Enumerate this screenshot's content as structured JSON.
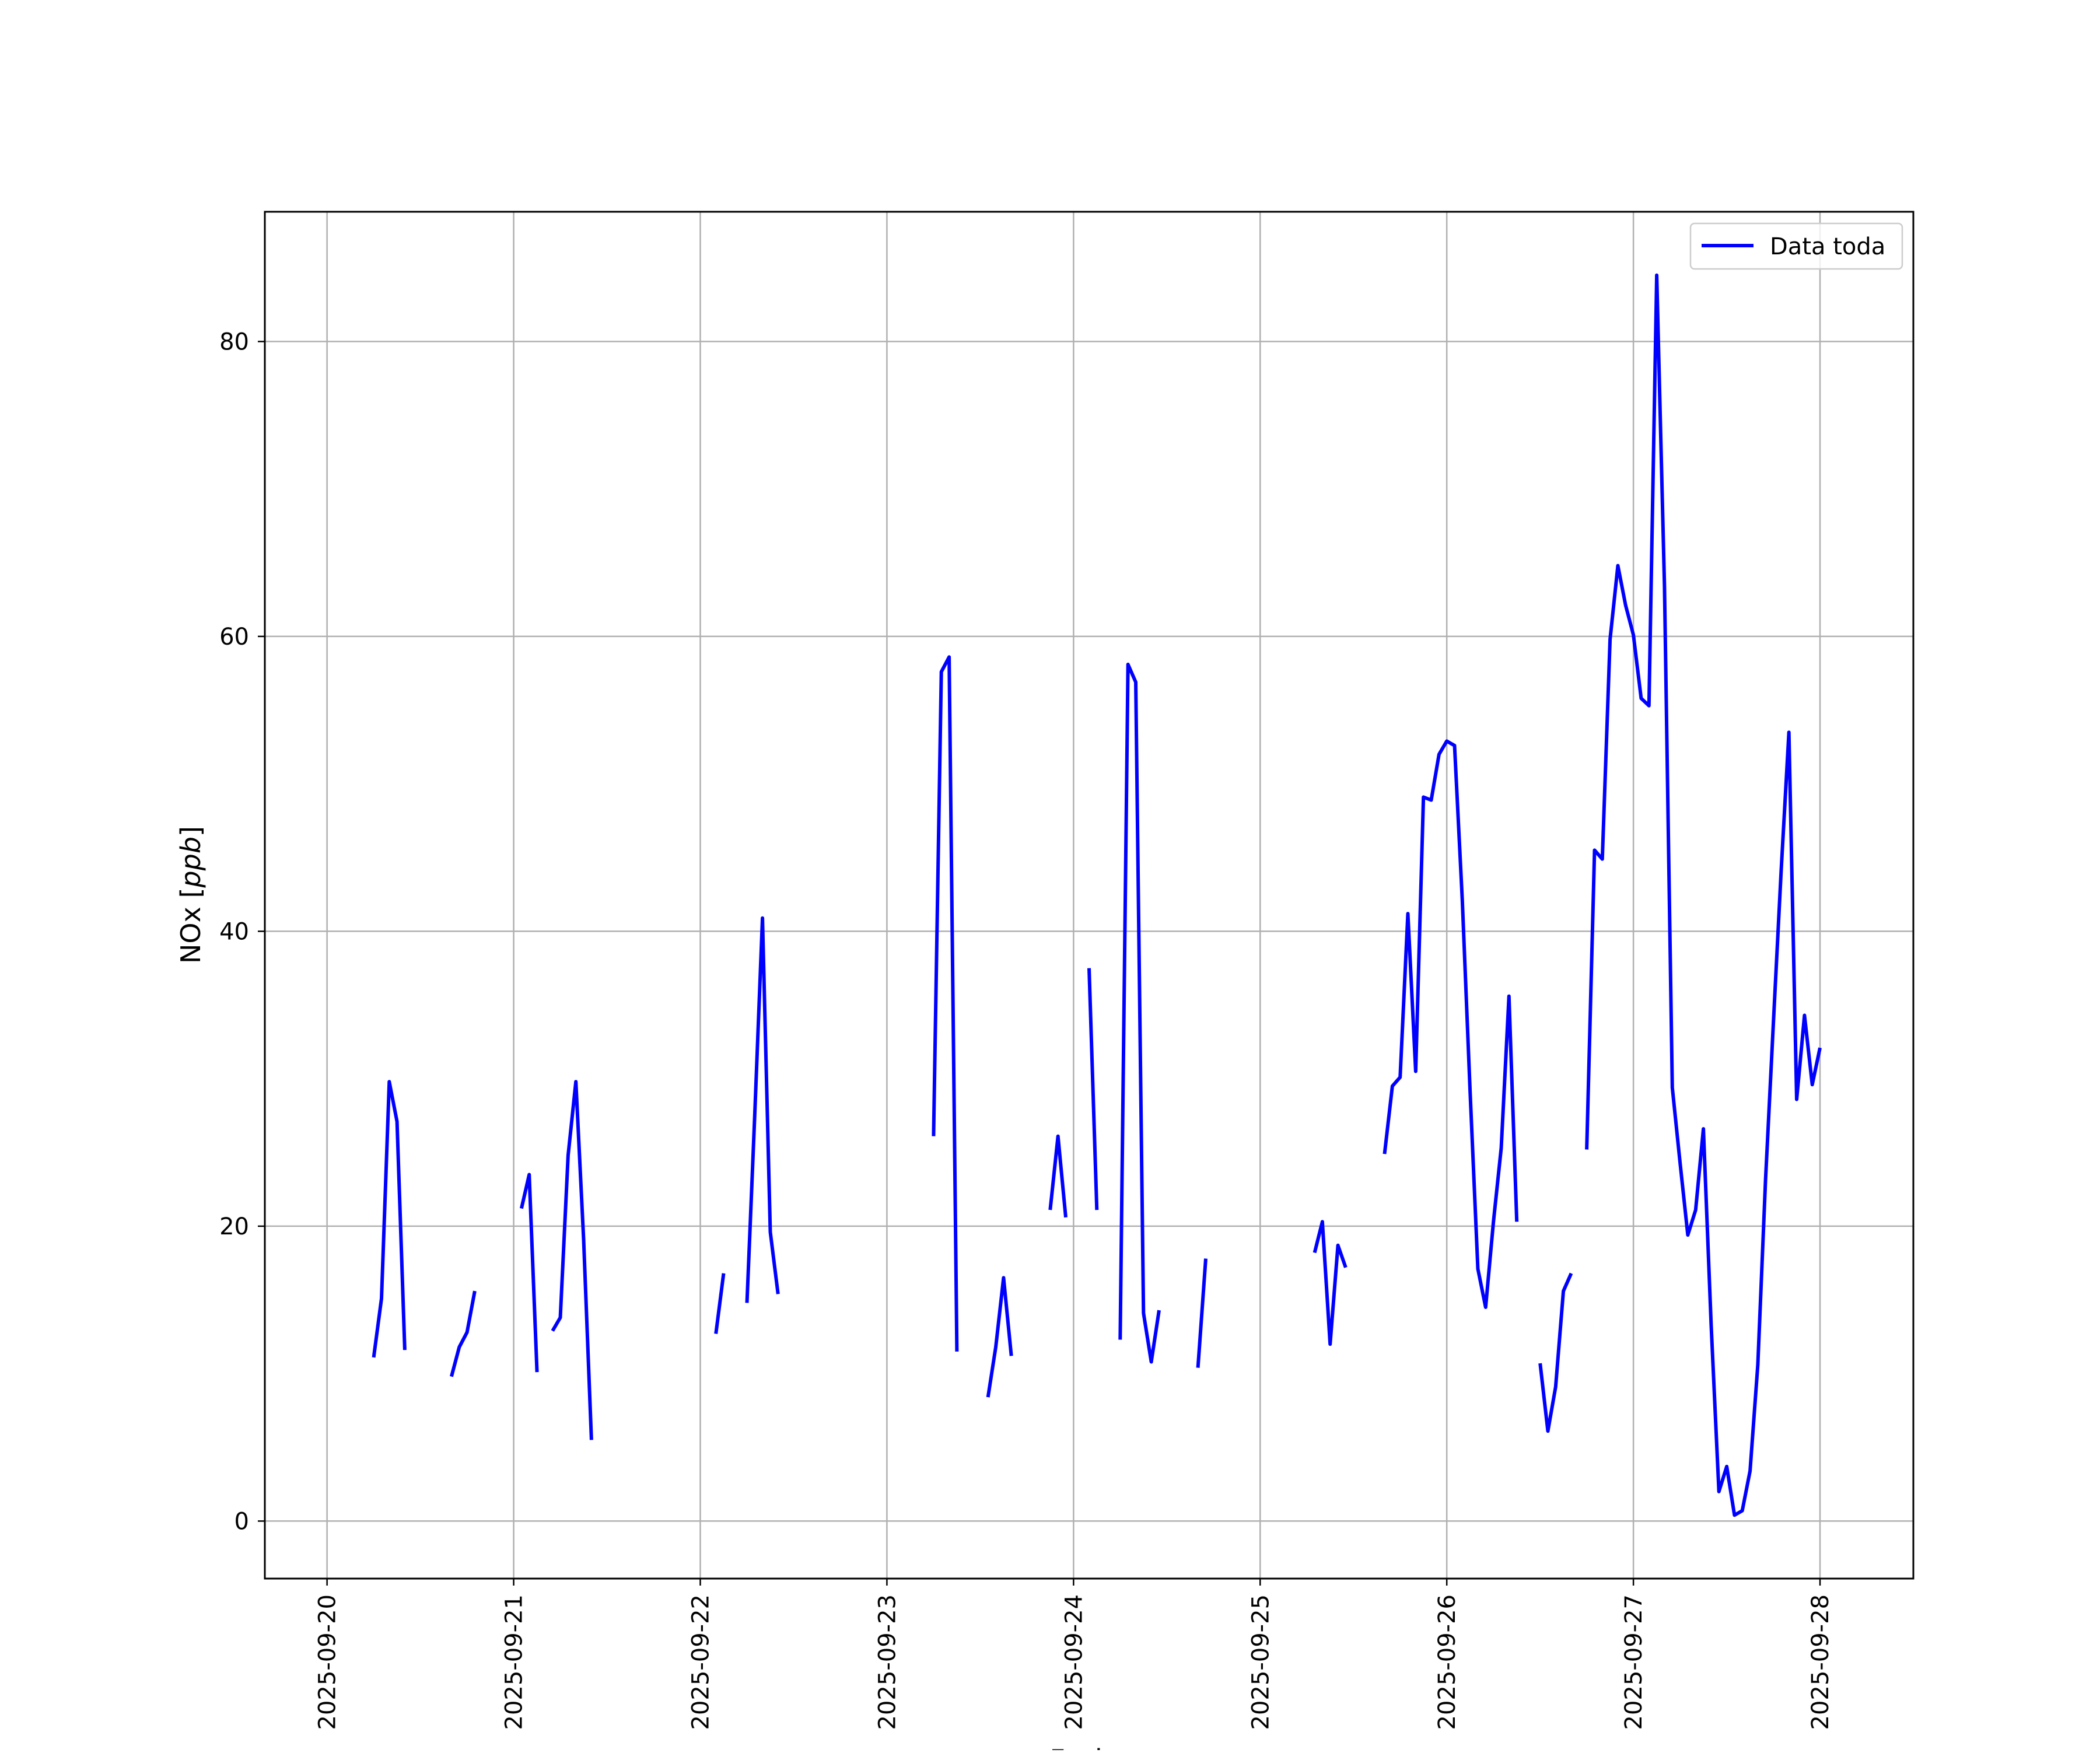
{
  "chart_data": {
    "type": "line",
    "title": "",
    "xlabel": "Fecha",
    "ylabel": "NOx [ppb]",
    "ylabel_main": "NOx [",
    "ylabel_unit": "ppb",
    "ylabel_close": "]",
    "x_type": "date",
    "xlim": [
      "2025-09-19T16:00",
      "2025-09-28T12:00"
    ],
    "ylim": [
      -3.9,
      88.8
    ],
    "x_ticks": [
      "2025-09-20",
      "2025-09-21",
      "2025-09-22",
      "2025-09-23",
      "2025-09-24",
      "2025-09-25",
      "2025-09-26",
      "2025-09-27",
      "2025-09-28"
    ],
    "y_ticks": [
      0,
      20,
      40,
      60,
      80
    ],
    "grid": true,
    "legend_position": "top-right",
    "series": [
      {
        "name": "Data toda",
        "color": "#0000ff",
        "segments": [
          [
            [
              "2025-09-20T06:00",
              11.1
            ],
            [
              "2025-09-20T07:00",
              15.1
            ],
            [
              "2025-09-20T08:00",
              29.8
            ],
            [
              "2025-09-20T09:00",
              27.1
            ],
            [
              "2025-09-20T10:00",
              11.6
            ]
          ],
          [
            [
              "2025-09-20T16:00",
              9.8
            ],
            [
              "2025-09-20T17:00",
              11.8
            ],
            [
              "2025-09-20T18:00",
              12.8
            ],
            [
              "2025-09-20T19:00",
              15.6
            ]
          ],
          [
            [
              "2025-09-21T01:00",
              21.2
            ],
            [
              "2025-09-21T02:00",
              23.5
            ],
            [
              "2025-09-21T03:00",
              10.1
            ]
          ],
          [
            [
              "2025-09-21T05:00",
              12.9
            ],
            [
              "2025-09-21T06:00",
              13.8
            ],
            [
              "2025-09-21T07:00",
              24.8
            ],
            [
              "2025-09-21T08:00",
              29.8
            ],
            [
              "2025-09-21T09:00",
              19.1
            ],
            [
              "2025-09-21T10:00",
              5.5
            ]
          ],
          [
            [
              "2025-09-22T02:00",
              12.7
            ],
            [
              "2025-09-22T03:00",
              16.8
            ]
          ],
          [
            [
              "2025-09-22T06:00",
              14.8
            ],
            [
              "2025-09-22T07:00",
              27.5
            ],
            [
              "2025-09-22T08:00",
              40.9
            ],
            [
              "2025-09-22T09:00",
              19.6
            ],
            [
              "2025-09-22T10:00",
              15.4
            ]
          ],
          [
            [
              "2025-09-23T06:00",
              26.1
            ],
            [
              "2025-09-23T07:00",
              57.6
            ],
            [
              "2025-09-23T08:00",
              58.6
            ],
            [
              "2025-09-23T09:00",
              11.5
            ]
          ],
          [
            [
              "2025-09-23T13:00",
              8.4
            ],
            [
              "2025-09-23T14:00",
              11.8
            ],
            [
              "2025-09-23T15:00",
              16.5
            ],
            [
              "2025-09-23T16:00",
              11.2
            ]
          ],
          [
            [
              "2025-09-23T21:00",
              21.1
            ],
            [
              "2025-09-23T22:00",
              26.1
            ],
            [
              "2025-09-23T23:00",
              20.6
            ]
          ],
          [
            [
              "2025-09-24T02:00",
              37.5
            ],
            [
              "2025-09-24T03:00",
              21.1
            ]
          ],
          [
            [
              "2025-09-24T06:00",
              12.3
            ],
            [
              "2025-09-24T07:00",
              58.1
            ],
            [
              "2025-09-24T08:00",
              56.9
            ],
            [
              "2025-09-24T09:00",
              14.1
            ],
            [
              "2025-09-24T10:00",
              10.8
            ],
            [
              "2025-09-24T11:00",
              14.3
            ]
          ],
          [
            [
              "2025-09-24T16:00",
              10.4
            ],
            [
              "2025-09-24T17:00",
              17.8
            ]
          ],
          [
            [
              "2025-09-25T07:00",
              18.2
            ],
            [
              "2025-09-25T08:00",
              20.3
            ],
            [
              "2025-09-25T09:00",
              12.0
            ],
            [
              "2025-09-25T10:00",
              18.7
            ],
            [
              "2025-09-25T11:00",
              17.2
            ]
          ],
          [
            [
              "2025-09-25T16:00",
              24.9
            ],
            [
              "2025-09-25T17:00",
              29.5
            ],
            [
              "2025-09-25T18:00",
              30.1
            ],
            [
              "2025-09-25T19:00",
              41.2
            ],
            [
              "2025-09-25T20:00",
              30.5
            ],
            [
              "2025-09-25T21:00",
              49.1
            ],
            [
              "2025-09-25T22:00",
              48.9
            ],
            [
              "2025-09-25T23:00",
              52.0
            ],
            [
              "2025-09-26T00:00",
              52.9
            ],
            [
              "2025-09-26T01:00",
              52.6
            ],
            [
              "2025-09-26T02:00",
              42.1
            ],
            [
              "2025-09-26T03:00",
              29.1
            ],
            [
              "2025-09-26T04:00",
              17.1
            ],
            [
              "2025-09-26T05:00",
              14.5
            ],
            [
              "2025-09-26T06:00",
              20.3
            ],
            [
              "2025-09-26T07:00",
              25.3
            ],
            [
              "2025-09-26T08:00",
              35.6
            ],
            [
              "2025-09-26T09:00",
              20.3
            ]
          ],
          [
            [
              "2025-09-26T12:00",
              10.7
            ],
            [
              "2025-09-26T13:00",
              6.1
            ],
            [
              "2025-09-26T14:00",
              9.1
            ],
            [
              "2025-09-26T15:00",
              15.6
            ],
            [
              "2025-09-26T16:00",
              16.8
            ]
          ],
          [
            [
              "2025-09-26T18:00",
              25.2
            ],
            [
              "2025-09-26T19:00",
              45.5
            ],
            [
              "2025-09-26T20:00",
              44.9
            ],
            [
              "2025-09-26T21:00",
              59.8
            ],
            [
              "2025-09-26T22:00",
              64.8
            ],
            [
              "2025-09-26T23:00",
              62.1
            ],
            [
              "2025-09-27T00:00",
              60.1
            ],
            [
              "2025-09-27T01:00",
              55.8
            ],
            [
              "2025-09-27T02:00",
              55.3
            ],
            [
              "2025-09-27T03:00",
              84.5
            ],
            [
              "2025-09-27T04:00",
              63.4
            ],
            [
              "2025-09-27T05:00",
              29.4
            ],
            [
              "2025-09-27T06:00",
              24.3
            ],
            [
              "2025-09-27T07:00",
              19.4
            ],
            [
              "2025-09-27T08:00",
              21.1
            ],
            [
              "2025-09-27T09:00",
              26.6
            ],
            [
              "2025-09-27T10:00",
              13.3
            ],
            [
              "2025-09-27T11:00",
              2.0
            ],
            [
              "2025-09-27T12:00",
              3.7
            ],
            [
              "2025-09-27T13:00",
              0.4
            ],
            [
              "2025-09-27T14:00",
              0.7
            ],
            [
              "2025-09-27T15:00",
              3.4
            ],
            [
              "2025-09-27T16:00",
              10.6
            ],
            [
              "2025-09-27T17:00",
              23.2
            ],
            [
              "2025-09-27T18:00",
              33.8
            ],
            [
              "2025-09-27T19:00",
              44.1
            ],
            [
              "2025-09-27T20:00",
              53.5
            ],
            [
              "2025-09-27T21:00",
              28.6
            ],
            [
              "2025-09-27T22:00",
              34.3
            ],
            [
              "2025-09-27T23:00",
              29.6
            ],
            [
              "2025-09-28T00:00",
              32.1
            ]
          ]
        ]
      }
    ]
  }
}
